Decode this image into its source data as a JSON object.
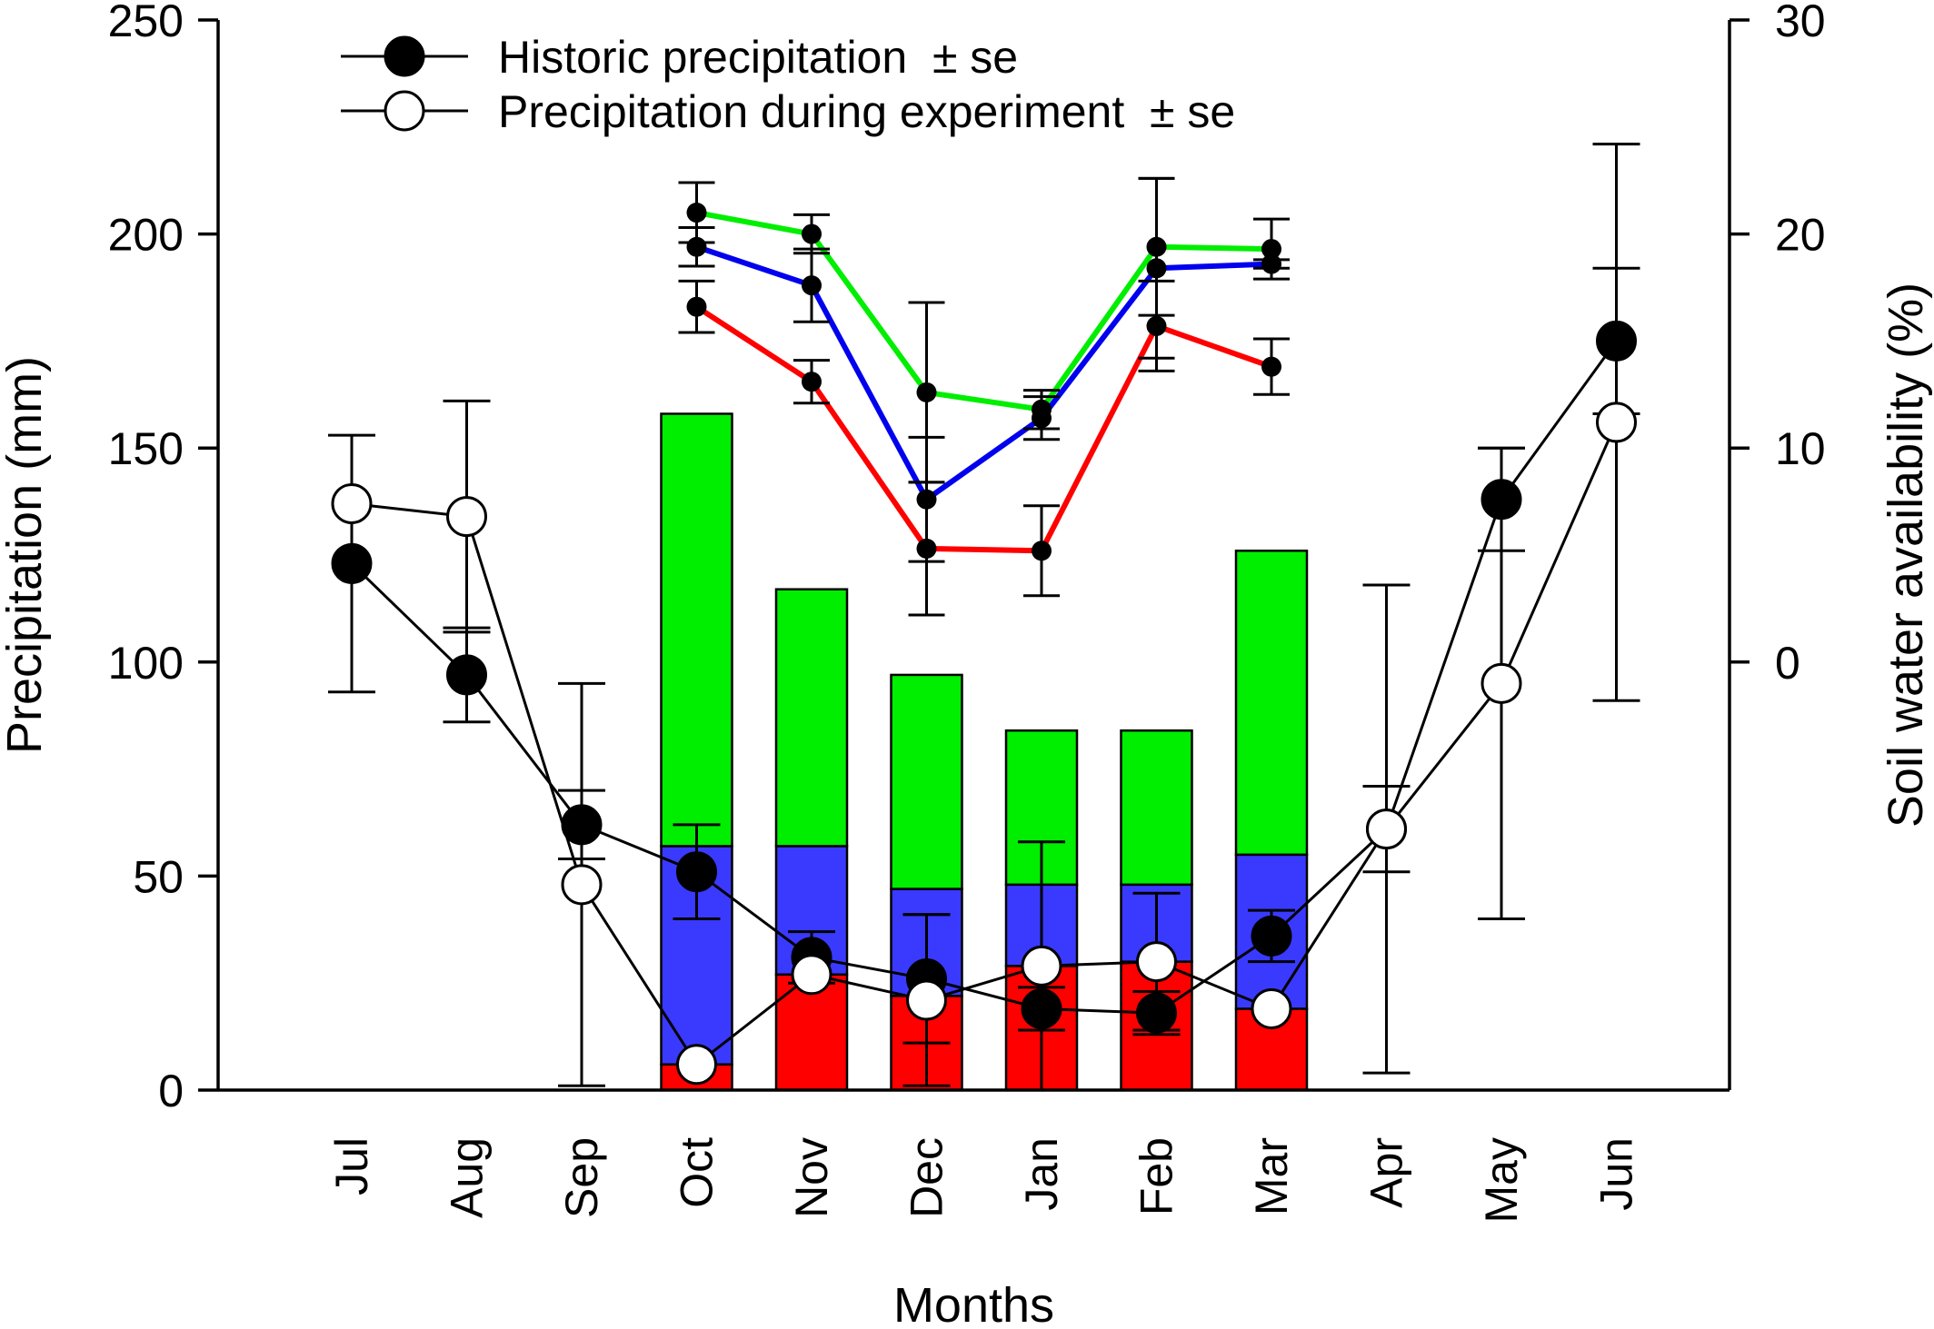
{
  "chart_data": {
    "type": "bar+line",
    "categories": [
      "Jul",
      "Aug",
      "Sep",
      "Oct",
      "Nov",
      "Dec",
      "Jan",
      "Feb",
      "Mar",
      "Apr",
      "May",
      "Jun"
    ],
    "xlabel": "Months",
    "ylabel": "Precipitation (mm)",
    "ylabel_right": "Soil water availability (%)",
    "ylim": [
      0,
      250
    ],
    "yticks": [
      0,
      50,
      100,
      150,
      200,
      250
    ],
    "ylim_right": [
      -20,
      30
    ],
    "yticks_right": [
      0,
      10,
      20,
      30
    ],
    "legend": {
      "position": "top-left",
      "entries": [
        "Historic precipitation  ± se",
        "Precipitation during experiment  ± se"
      ]
    },
    "stacked_bars": {
      "colors": [
        "#ff0000",
        "#3a3aff",
        "#00ee00"
      ],
      "data": [
        {
          "month": "Oct",
          "tops": [
            6,
            57,
            158
          ]
        },
        {
          "month": "Nov",
          "tops": [
            27,
            57,
            117
          ]
        },
        {
          "month": "Dec",
          "tops": [
            22,
            47,
            97
          ]
        },
        {
          "month": "Jan",
          "tops": [
            29,
            48,
            84
          ]
        },
        {
          "month": "Feb",
          "tops": [
            30,
            48,
            84
          ]
        },
        {
          "month": "Mar",
          "tops": [
            19,
            55,
            126
          ]
        }
      ]
    },
    "precipitation_series": [
      {
        "name": "Historic precipitation",
        "marker": "filled",
        "months": [
          "Jul",
          "Aug",
          "Sep",
          "Oct",
          "Nov",
          "Dec",
          "Jan",
          "Feb",
          "Mar",
          "Apr",
          "May",
          "Jun"
        ],
        "values": [
          123,
          97,
          62,
          51,
          31,
          26,
          19,
          18,
          36,
          61,
          138,
          175
        ],
        "se": [
          30,
          11,
          8,
          11,
          6,
          15,
          5,
          5,
          6,
          10,
          12,
          17
        ]
      },
      {
        "name": "Precipitation during experiment",
        "marker": "open",
        "months": [
          "Jul",
          "Aug",
          "Sep",
          "Oct",
          "Nov",
          "Dec",
          "Jan",
          "Feb",
          "Mar",
          "Apr",
          "May",
          "Jun"
        ],
        "values": [
          137,
          134,
          48,
          6,
          27,
          21,
          29,
          30,
          19,
          61,
          95,
          156
        ],
        "se": [
          0,
          27,
          47,
          0,
          0,
          20,
          29,
          16,
          0,
          57,
          55,
          65
        ]
      }
    ],
    "soil_water_series": [
      {
        "color": "#00ee00",
        "months": [
          "Oct",
          "Nov",
          "Dec",
          "Jan",
          "Feb",
          "Mar"
        ],
        "values": [
          21.0,
          20.0,
          12.6,
          11.8,
          19.4,
          19.3
        ],
        "se": [
          1.4,
          0.9,
          4.2,
          0.9,
          3.2,
          1.4
        ]
      },
      {
        "color": "#0000ee",
        "months": [
          "Oct",
          "Nov",
          "Dec",
          "Jan",
          "Feb",
          "Mar"
        ],
        "values": [
          19.4,
          17.6,
          7.6,
          11.4,
          18.4,
          18.6
        ],
        "se": [
          0.9,
          1.7,
          2.9,
          1.0,
          4.2,
          0.2
        ]
      },
      {
        "color": "#ff0000",
        "months": [
          "Oct",
          "Nov",
          "Dec",
          "Jan",
          "Feb",
          "Mar"
        ],
        "values": [
          16.6,
          13.1,
          5.3,
          5.2,
          15.7,
          13.8
        ],
        "se": [
          1.2,
          1.0,
          3.1,
          2.1,
          2.1,
          1.3
        ]
      }
    ]
  }
}
